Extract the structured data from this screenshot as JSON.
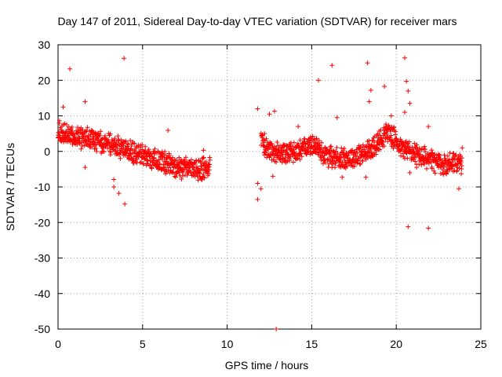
{
  "chart_data": {
    "type": "scatter",
    "title": "Day 147 of 2011, Sidereal Day-to-day VTEC variation (SDTVAR) for receiver mars",
    "xlabel": "GPS time / hours",
    "ylabel": "SDTVAR / TECUs",
    "xlim": [
      0,
      25
    ],
    "ylim": [
      -50,
      30
    ],
    "xticks": [
      0,
      5,
      10,
      15,
      20,
      25
    ],
    "yticks": [
      30,
      20,
      10,
      0,
      -10,
      -20,
      -30,
      -40,
      -50
    ],
    "grid": true,
    "marker": "+",
    "color": "#ff0000",
    "series": [
      {
        "name": "SDTVAR",
        "trend": [
          [
            0.0,
            5.5
          ],
          [
            0.5,
            5.0
          ],
          [
            1.0,
            4.5
          ],
          [
            1.5,
            3.8
          ],
          [
            2.0,
            3.2
          ],
          [
            2.5,
            2.5
          ],
          [
            3.0,
            2.0
          ],
          [
            3.5,
            1.3
          ],
          [
            4.0,
            0.5
          ],
          [
            4.5,
            -0.5
          ],
          [
            5.0,
            -1.3
          ],
          [
            5.5,
            -2.0
          ],
          [
            6.0,
            -2.8
          ],
          [
            6.5,
            -3.5
          ],
          [
            7.0,
            -4.3
          ],
          [
            7.5,
            -4.8
          ],
          [
            8.0,
            -5.2
          ],
          [
            8.5,
            -5.0
          ],
          [
            9.0,
            -5.0
          ],
          [
            12.0,
            3.5
          ],
          [
            12.5,
            0.5
          ],
          [
            13.0,
            -0.5
          ],
          [
            13.5,
            -0.5
          ],
          [
            14.0,
            0.0
          ],
          [
            14.5,
            1.0
          ],
          [
            15.0,
            2.0
          ],
          [
            15.3,
            1.5
          ],
          [
            15.6,
            -0.5
          ],
          [
            16.0,
            -1.5
          ],
          [
            16.5,
            -1.8
          ],
          [
            17.0,
            -1.8
          ],
          [
            17.5,
            -1.5
          ],
          [
            18.0,
            -1.0
          ],
          [
            18.5,
            0.5
          ],
          [
            19.0,
            3.0
          ],
          [
            19.5,
            5.5
          ],
          [
            20.0,
            3.0
          ],
          [
            20.3,
            1.0
          ],
          [
            20.8,
            0.0
          ],
          [
            21.3,
            -1.0
          ],
          [
            21.8,
            -2.0
          ],
          [
            22.3,
            -3.0
          ],
          [
            22.8,
            -3.8
          ],
          [
            23.3,
            -3.0
          ],
          [
            23.9,
            -3.5
          ]
        ],
        "outliers": [
          [
            0.7,
            23.2
          ],
          [
            3.9,
            26.2
          ],
          [
            1.6,
            14.0
          ],
          [
            0.3,
            12.5
          ],
          [
            3.3,
            -7.9
          ],
          [
            3.3,
            -10.0
          ],
          [
            3.6,
            -11.8
          ],
          [
            3.95,
            -14.8
          ],
          [
            1.6,
            -4.5
          ],
          [
            6.5,
            5.9
          ],
          [
            8.6,
            0.3
          ],
          [
            7.3,
            -7.8
          ],
          [
            11.8,
            12.0
          ],
          [
            11.8,
            -13.5
          ],
          [
            11.8,
            -9.0
          ],
          [
            12.0,
            -10.5
          ],
          [
            12.2,
            -1.0
          ],
          [
            12.5,
            10.5
          ],
          [
            12.7,
            -7.0
          ],
          [
            12.8,
            11.3
          ],
          [
            12.9,
            -50.0
          ],
          [
            14.2,
            7.0
          ],
          [
            15.4,
            20.0
          ],
          [
            16.2,
            24.2
          ],
          [
            16.5,
            9.5
          ],
          [
            16.8,
            -7.3
          ],
          [
            18.3,
            24.9
          ],
          [
            18.4,
            14.0
          ],
          [
            18.5,
            17.2
          ],
          [
            19.3,
            18.3
          ],
          [
            18.2,
            -7.3
          ],
          [
            19.7,
            10.0
          ],
          [
            20.5,
            26.3
          ],
          [
            20.6,
            19.7
          ],
          [
            20.7,
            17.0
          ],
          [
            20.8,
            13.5
          ],
          [
            20.5,
            11.0
          ],
          [
            20.7,
            -21.2
          ],
          [
            21.9,
            -21.6
          ],
          [
            21.9,
            7.0
          ],
          [
            23.7,
            -10.5
          ],
          [
            20.8,
            -6.0
          ],
          [
            21.2,
            -4.5
          ],
          [
            23.9,
            1.0
          ]
        ]
      }
    ]
  }
}
